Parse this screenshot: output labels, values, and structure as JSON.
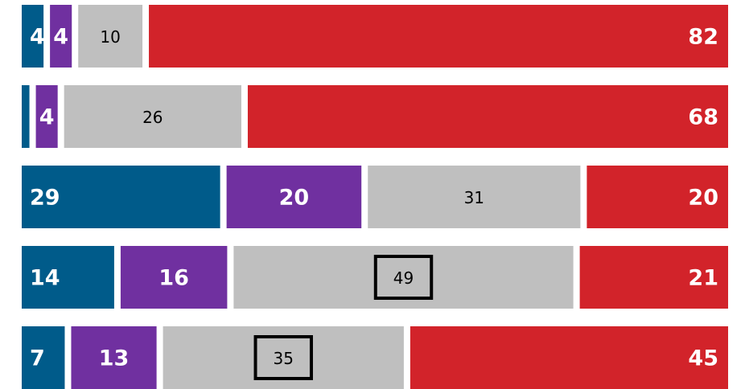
{
  "chart_data": {
    "type": "stacked-bar-horizontal",
    "series": [
      {
        "color": "#005b8a",
        "values": [
          4,
          2,
          29,
          14,
          7
        ],
        "value_labels": [
          "4",
          null,
          "29",
          "14",
          "7"
        ],
        "label_align": "start",
        "label_color": "#ffffff"
      },
      {
        "color": "#7030a0",
        "values": [
          4,
          4,
          20,
          16,
          13
        ],
        "label_align": "middle",
        "label_color": "#ffffff"
      },
      {
        "color": "#bfbfbf",
        "values": [
          10,
          26,
          31,
          49,
          35
        ],
        "label_align": "middle",
        "label_color": "#000000",
        "boxed": [
          false,
          false,
          false,
          true,
          true
        ]
      },
      {
        "color": "#d2232a",
        "values": [
          82,
          68,
          20,
          21,
          45
        ],
        "label_align": "end",
        "label_color": "#ffffff"
      }
    ],
    "xlim": [
      0,
      100
    ]
  }
}
